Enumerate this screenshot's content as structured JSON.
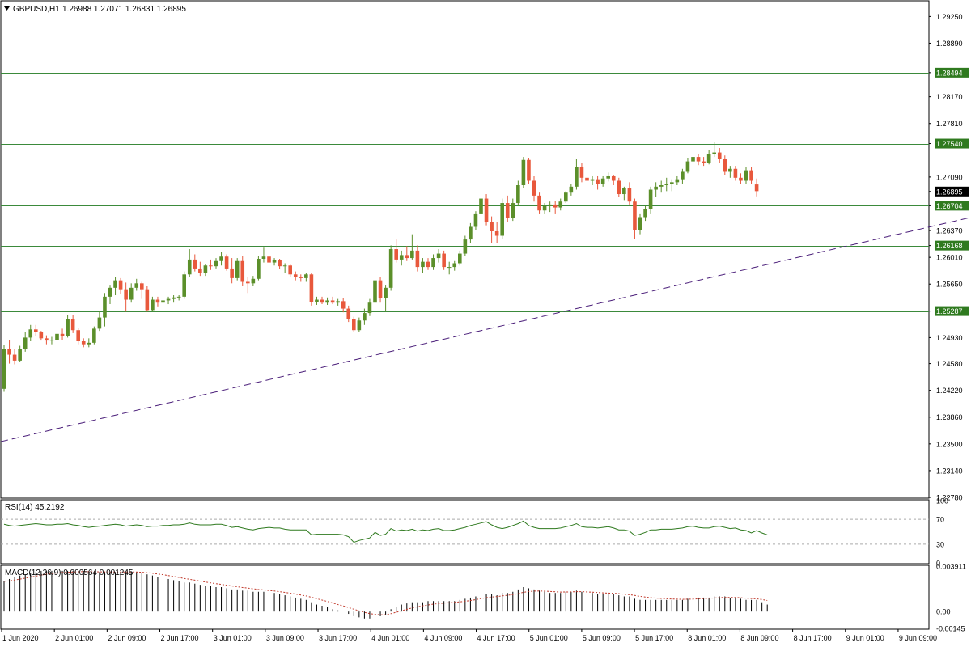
{
  "header": {
    "symbol_label": "GBPUSD,H1",
    "ohlc_text": "1.26988 1.27071 1.26831 1.26895"
  },
  "colors": {
    "bull": "#5b8f2a",
    "bear": "#e8583c",
    "level": "#3b8a3b",
    "trend": "#4b1f7a",
    "rsi": "#2f7a1f",
    "macd_hist": "#000000",
    "macd_signal": "#c0392b",
    "axis": "#000000",
    "price_tag_fill": "#2f7a1f",
    "current_tag_fill": "#000000"
  },
  "chart_data": [
    {
      "type": "candlestick",
      "symbol": "GBPUSD",
      "timeframe": "H1",
      "ylim": [
        1.2278,
        1.2945
      ],
      "y_ticks": [
        "1.29250",
        "1.28890",
        "1.28494",
        "1.28170",
        "1.27810",
        "1.27540",
        "1.27090",
        "1.26895",
        "1.26704",
        "1.26370",
        "1.26168",
        "1.26010",
        "1.25650",
        "1.25287",
        "1.24930",
        "1.24580",
        "1.24220",
        "1.23860",
        "1.23500",
        "1.23140",
        "1.22780"
      ],
      "x_ticks": [
        "1 Jun 2020",
        "2 Jun 01:00",
        "2 Jun 09:00",
        "2 Jun 17:00",
        "3 Jun 01:00",
        "3 Jun 09:00",
        "3 Jun 17:00",
        "4 Jun 01:00",
        "4 Jun 09:00",
        "4 Jun 17:00",
        "5 Jun 01:00",
        "5 Jun 09:00",
        "5 Jun 17:00",
        "8 Jun 01:00",
        "8 Jun 09:00",
        "8 Jun 17:00",
        "9 Jun 01:00",
        "9 Jun 09:00"
      ],
      "horizontal_levels": [
        1.28494,
        1.2754,
        1.26895,
        1.26704,
        1.26168,
        1.25287
      ],
      "current_price": 1.26895,
      "trendline": {
        "style": "dashed",
        "from": [
          0,
          1.2353
        ],
        "to": [
          193.5,
          1.2673
        ]
      },
      "candles": [
        [
          1.2424,
          1.2483,
          1.242,
          1.2478
        ],
        [
          1.2478,
          1.249,
          1.2458,
          1.247
        ],
        [
          1.247,
          1.2478,
          1.2457,
          1.2462
        ],
        [
          1.2462,
          1.2482,
          1.246,
          1.2478
        ],
        [
          1.2478,
          1.25,
          1.2474,
          1.2493
        ],
        [
          1.2493,
          1.251,
          1.2488,
          1.2504
        ],
        [
          1.2504,
          1.251,
          1.2495,
          1.25
        ],
        [
          1.25,
          1.2502,
          1.2489,
          1.2492
        ],
        [
          1.2492,
          1.2496,
          1.2484,
          1.2489
        ],
        [
          1.2489,
          1.2494,
          1.2484,
          1.249
        ],
        [
          1.249,
          1.2502,
          1.2486,
          1.2498
        ],
        [
          1.2498,
          1.2505,
          1.249,
          1.2495
        ],
        [
          1.2495,
          1.2523,
          1.2493,
          1.2518
        ],
        [
          1.2518,
          1.2523,
          1.2499,
          1.2503
        ],
        [
          1.2503,
          1.2506,
          1.2484,
          1.2488
        ],
        [
          1.2488,
          1.2492,
          1.248,
          1.2484
        ],
        [
          1.2484,
          1.2492,
          1.248,
          1.2486
        ],
        [
          1.2486,
          1.2508,
          1.2484,
          1.2505
        ],
        [
          1.2505,
          1.2528,
          1.2502,
          1.252
        ],
        [
          1.252,
          1.2553,
          1.2508,
          1.2548
        ],
        [
          1.2548,
          1.2563,
          1.2538,
          1.256
        ],
        [
          1.256,
          1.2575,
          1.255,
          1.257
        ],
        [
          1.257,
          1.2573,
          1.2552,
          1.2558
        ],
        [
          1.2558,
          1.2567,
          1.2528,
          1.2544
        ],
        [
          1.2544,
          1.2566,
          1.254,
          1.256
        ],
        [
          1.256,
          1.2572,
          1.2556,
          1.2566
        ],
        [
          1.2566,
          1.2568,
          1.2545,
          1.2558
        ],
        [
          1.2558,
          1.2562,
          1.2528,
          1.253
        ],
        [
          1.253,
          1.2548,
          1.2528,
          1.2544
        ],
        [
          1.2544,
          1.2548,
          1.2535,
          1.254
        ],
        [
          1.254,
          1.2546,
          1.2534,
          1.2543
        ],
        [
          1.2543,
          1.2548,
          1.2538,
          1.2545
        ],
        [
          1.2545,
          1.255,
          1.254,
          1.2547
        ],
        [
          1.2547,
          1.255,
          1.2543,
          1.2548
        ],
        [
          1.2548,
          1.2582,
          1.2545,
          1.2578
        ],
        [
          1.2578,
          1.2612,
          1.2574,
          1.2598
        ],
        [
          1.2598,
          1.2605,
          1.2582,
          1.2586
        ],
        [
          1.2586,
          1.2595,
          1.2576,
          1.258
        ],
        [
          1.258,
          1.2592,
          1.2576,
          1.259
        ],
        [
          1.259,
          1.2598,
          1.2584,
          1.2589
        ],
        [
          1.2589,
          1.26,
          1.2586,
          1.2596
        ],
        [
          1.2596,
          1.2608,
          1.259,
          1.2602
        ],
        [
          1.2602,
          1.2605,
          1.2583,
          1.2586
        ],
        [
          1.2586,
          1.26,
          1.2566,
          1.2573
        ],
        [
          1.2573,
          1.26,
          1.257,
          1.2596
        ],
        [
          1.2596,
          1.2603,
          1.2562,
          1.2568
        ],
        [
          1.2568,
          1.2574,
          1.2553,
          1.2566
        ],
        [
          1.2566,
          1.2576,
          1.2562,
          1.2572
        ],
        [
          1.2572,
          1.2603,
          1.257,
          1.2599
        ],
        [
          1.2599,
          1.2614,
          1.2594,
          1.2602
        ],
        [
          1.2602,
          1.2605,
          1.259,
          1.2594
        ],
        [
          1.2594,
          1.26,
          1.259,
          1.2597
        ],
        [
          1.2597,
          1.2599,
          1.2585,
          1.2589
        ],
        [
          1.2589,
          1.2593,
          1.258,
          1.259
        ],
        [
          1.259,
          1.2592,
          1.2574,
          1.2578
        ],
        [
          1.2578,
          1.2582,
          1.257,
          1.2575
        ],
        [
          1.2575,
          1.2578,
          1.2568,
          1.2573
        ],
        [
          1.2573,
          1.258,
          1.2568,
          1.2578
        ],
        [
          1.2578,
          1.258,
          1.2536,
          1.2541
        ],
        [
          1.2541,
          1.2548,
          1.2537,
          1.2544
        ],
        [
          1.2544,
          1.2548,
          1.2538,
          1.254
        ],
        [
          1.254,
          1.2547,
          1.2537,
          1.2543
        ],
        [
          1.2543,
          1.2548,
          1.2538,
          1.254
        ],
        [
          1.254,
          1.2545,
          1.2536,
          1.2542
        ],
        [
          1.2542,
          1.2546,
          1.2527,
          1.2532
        ],
        [
          1.2532,
          1.2536,
          1.2514,
          1.2518
        ],
        [
          1.2518,
          1.2521,
          1.25,
          1.2503
        ],
        [
          1.2503,
          1.252,
          1.25,
          1.2516
        ],
        [
          1.2516,
          1.2532,
          1.251,
          1.2526
        ],
        [
          1.2526,
          1.2545,
          1.2522,
          1.254
        ],
        [
          1.254,
          1.2574,
          1.2537,
          1.257
        ],
        [
          1.257,
          1.2575,
          1.254,
          1.2546
        ],
        [
          1.2546,
          1.2563,
          1.2528,
          1.256
        ],
        [
          1.256,
          1.2617,
          1.2556,
          1.2612
        ],
        [
          1.2612,
          1.2625,
          1.2594,
          1.2598
        ],
        [
          1.2598,
          1.261,
          1.259,
          1.2604
        ],
        [
          1.2604,
          1.2616,
          1.2596,
          1.26
        ],
        [
          1.26,
          1.2632,
          1.2598,
          1.261
        ],
        [
          1.261,
          1.2617,
          1.2582,
          1.2588
        ],
        [
          1.2588,
          1.26,
          1.258,
          1.2595
        ],
        [
          1.2595,
          1.26,
          1.2584,
          1.2588
        ],
        [
          1.2588,
          1.2605,
          1.2584,
          1.26
        ],
        [
          1.26,
          1.2612,
          1.2594,
          1.2606
        ],
        [
          1.2606,
          1.261,
          1.2584,
          1.2588
        ],
        [
          1.2588,
          1.2595,
          1.2578,
          1.2588
        ],
        [
          1.2588,
          1.2596,
          1.2583,
          1.2593
        ],
        [
          1.2593,
          1.261,
          1.259,
          1.2606
        ],
        [
          1.2606,
          1.263,
          1.2603,
          1.2625
        ],
        [
          1.2625,
          1.2647,
          1.262,
          1.2642
        ],
        [
          1.2642,
          1.2663,
          1.2638,
          1.266
        ],
        [
          1.266,
          1.2691,
          1.2656,
          1.268
        ],
        [
          1.268,
          1.2686,
          1.2644,
          1.2648
        ],
        [
          1.2648,
          1.2656,
          1.262,
          1.2636
        ],
        [
          1.2636,
          1.2648,
          1.262,
          1.263
        ],
        [
          1.263,
          1.268,
          1.2626,
          1.2674
        ],
        [
          1.2674,
          1.2684,
          1.2648,
          1.2654
        ],
        [
          1.2654,
          1.268,
          1.265,
          1.2674
        ],
        [
          1.2674,
          1.2704,
          1.267,
          1.2698
        ],
        [
          1.2698,
          1.2736,
          1.2694,
          1.2732
        ],
        [
          1.2732,
          1.2735,
          1.27,
          1.2704
        ],
        [
          1.2704,
          1.271,
          1.2676,
          1.2684
        ],
        [
          1.2684,
          1.2688,
          1.266,
          1.2664
        ],
        [
          1.2664,
          1.2674,
          1.266,
          1.267
        ],
        [
          1.267,
          1.2676,
          1.2662,
          1.2672
        ],
        [
          1.2672,
          1.2677,
          1.266,
          1.2668
        ],
        [
          1.2668,
          1.268,
          1.2664,
          1.2676
        ],
        [
          1.2676,
          1.269,
          1.2674,
          1.2688
        ],
        [
          1.2688,
          1.27,
          1.2684,
          1.2696
        ],
        [
          1.2696,
          1.2733,
          1.2692,
          1.2722
        ],
        [
          1.2722,
          1.2728,
          1.2702,
          1.2708
        ],
        [
          1.2708,
          1.2713,
          1.2694,
          1.2704
        ],
        [
          1.2704,
          1.271,
          1.2698,
          1.2706
        ],
        [
          1.2706,
          1.271,
          1.2692,
          1.27
        ],
        [
          1.27,
          1.271,
          1.2696,
          1.2707
        ],
        [
          1.2707,
          1.2715,
          1.2703,
          1.271
        ],
        [
          1.271,
          1.2712,
          1.2698,
          1.2704
        ],
        [
          1.2704,
          1.2708,
          1.2682,
          1.2686
        ],
        [
          1.2686,
          1.2696,
          1.2678,
          1.2694
        ],
        [
          1.2694,
          1.2702,
          1.2672,
          1.2676
        ],
        [
          1.2676,
          1.268,
          1.2626,
          1.2638
        ],
        [
          1.2638,
          1.266,
          1.2632,
          1.2655
        ],
        [
          1.2655,
          1.267,
          1.265,
          1.2666
        ],
        [
          1.2666,
          1.2696,
          1.266,
          1.2692
        ],
        [
          1.2692,
          1.2702,
          1.2682,
          1.2696
        ],
        [
          1.2696,
          1.2704,
          1.2688,
          1.2698
        ],
        [
          1.2698,
          1.2708,
          1.269,
          1.27
        ],
        [
          1.27,
          1.2706,
          1.269,
          1.2702
        ],
        [
          1.2702,
          1.271,
          1.2698,
          1.2706
        ],
        [
          1.2706,
          1.272,
          1.27,
          1.2716
        ],
        [
          1.2716,
          1.2735,
          1.2714,
          1.273
        ],
        [
          1.273,
          1.274,
          1.2722,
          1.2736
        ],
        [
          1.2736,
          1.274,
          1.2725,
          1.273
        ],
        [
          1.273,
          1.2736,
          1.2724,
          1.2728
        ],
        [
          1.2728,
          1.2745,
          1.2726,
          1.274
        ],
        [
          1.274,
          1.2756,
          1.2736,
          1.2742
        ],
        [
          1.2742,
          1.2748,
          1.2728,
          1.2733
        ],
        [
          1.2733,
          1.2738,
          1.2712,
          1.2716
        ],
        [
          1.2716,
          1.2724,
          1.2708,
          1.272
        ],
        [
          1.272,
          1.2724,
          1.2704,
          1.2708
        ],
        [
          1.2708,
          1.2714,
          1.27,
          1.2704
        ],
        [
          1.2704,
          1.2722,
          1.27,
          1.2718
        ],
        [
          1.2718,
          1.2722,
          1.27,
          1.2704
        ],
        [
          1.2699,
          1.2707,
          1.2683,
          1.269
        ]
      ]
    },
    {
      "type": "line",
      "name": "RSI(14)",
      "label": "RSI(14) 45.2192",
      "ylim": [
        0,
        100
      ],
      "y_ticks": [
        100,
        70,
        30,
        0
      ],
      "levels": [
        70,
        30
      ],
      "values": [
        62,
        60,
        59,
        60,
        61,
        62,
        63,
        62,
        61,
        61,
        62,
        62,
        63,
        61,
        60,
        58,
        57,
        58,
        59,
        60,
        61,
        62,
        61,
        59,
        60,
        61,
        60,
        58,
        59,
        59,
        60,
        60,
        61,
        61,
        62,
        64,
        62,
        61,
        61,
        61,
        62,
        62,
        60,
        57,
        58,
        56,
        54,
        53,
        55,
        56,
        57,
        56,
        56,
        54,
        53,
        53,
        53,
        53,
        45,
        46,
        46,
        46,
        46,
        46,
        45,
        42,
        33,
        36,
        38,
        40,
        49,
        44,
        46,
        55,
        51,
        53,
        52,
        54,
        51,
        53,
        52,
        54,
        55,
        52,
        52,
        53,
        55,
        57,
        60,
        62,
        64,
        66,
        61,
        57,
        55,
        57,
        60,
        63,
        67,
        60,
        57,
        55,
        55,
        55,
        55,
        56,
        58,
        60,
        63,
        58,
        57,
        57,
        56,
        57,
        58,
        56,
        53,
        53,
        51,
        44,
        46,
        49,
        53,
        53,
        54,
        54,
        54,
        55,
        56,
        58,
        59,
        57,
        56,
        56,
        58,
        59,
        57,
        55,
        56,
        53,
        52,
        48,
        52,
        48,
        45
      ]
    },
    {
      "type": "bar+line",
      "name": "MACD(12,26,9)",
      "label": "MACD(12,26,9) 0.000564 0.001245",
      "ylim": [
        -0.00145,
        0.003911
      ],
      "y_ticks": [
        "0.003911",
        "0.00",
        "-0.00145"
      ],
      "histogram": [
        0.0026,
        0.0028,
        0.003,
        0.0031,
        0.0032,
        0.0033,
        0.0034,
        0.0035,
        0.0035,
        0.0035,
        0.0035,
        0.0035,
        0.0035,
        0.0035,
        0.0035,
        0.0035,
        0.0034,
        0.0034,
        0.0034,
        0.0034,
        0.0034,
        0.0034,
        0.0034,
        0.0034,
        0.0034,
        0.0034,
        0.0033,
        0.0032,
        0.0031,
        0.003,
        0.0029,
        0.0028,
        0.0027,
        0.0026,
        0.0025,
        0.0025,
        0.0024,
        0.0023,
        0.0022,
        0.0022,
        0.0021,
        0.0021,
        0.002,
        0.0019,
        0.0019,
        0.0018,
        0.0018,
        0.0017,
        0.0017,
        0.0017,
        0.0016,
        0.0016,
        0.0015,
        0.0014,
        0.0013,
        0.0012,
        0.0011,
        0.001,
        0.0008,
        0.0006,
        0.0005,
        0.0004,
        0.0002,
        0.0001,
        0.0,
        -0.0002,
        -0.0004,
        -0.0005,
        -0.0006,
        -0.0006,
        -0.0005,
        -0.0004,
        -0.0003,
        0.0002,
        0.0004,
        0.0006,
        0.0007,
        0.0008,
        0.0008,
        0.0008,
        0.0009,
        0.0009,
        0.0009,
        0.0009,
        0.0009,
        0.0009,
        0.001,
        0.0011,
        0.0012,
        0.0013,
        0.0015,
        0.0015,
        0.0015,
        0.0014,
        0.0016,
        0.0016,
        0.0017,
        0.0019,
        0.0021,
        0.002,
        0.0019,
        0.0018,
        0.0017,
        0.0016,
        0.0016,
        0.0016,
        0.0017,
        0.0017,
        0.0018,
        0.0017,
        0.0016,
        0.0016,
        0.0015,
        0.0015,
        0.0015,
        0.0015,
        0.0014,
        0.0013,
        0.0013,
        0.0011,
        0.001,
        0.001,
        0.001,
        0.001,
        0.001,
        0.001,
        0.001,
        0.001,
        0.001,
        0.0011,
        0.0011,
        0.0012,
        0.0012,
        0.0012,
        0.0013,
        0.0013,
        0.0013,
        0.0012,
        0.0012,
        0.0011,
        0.001,
        0.001,
        0.001,
        0.0008,
        0.0006
      ]
    }
  ]
}
